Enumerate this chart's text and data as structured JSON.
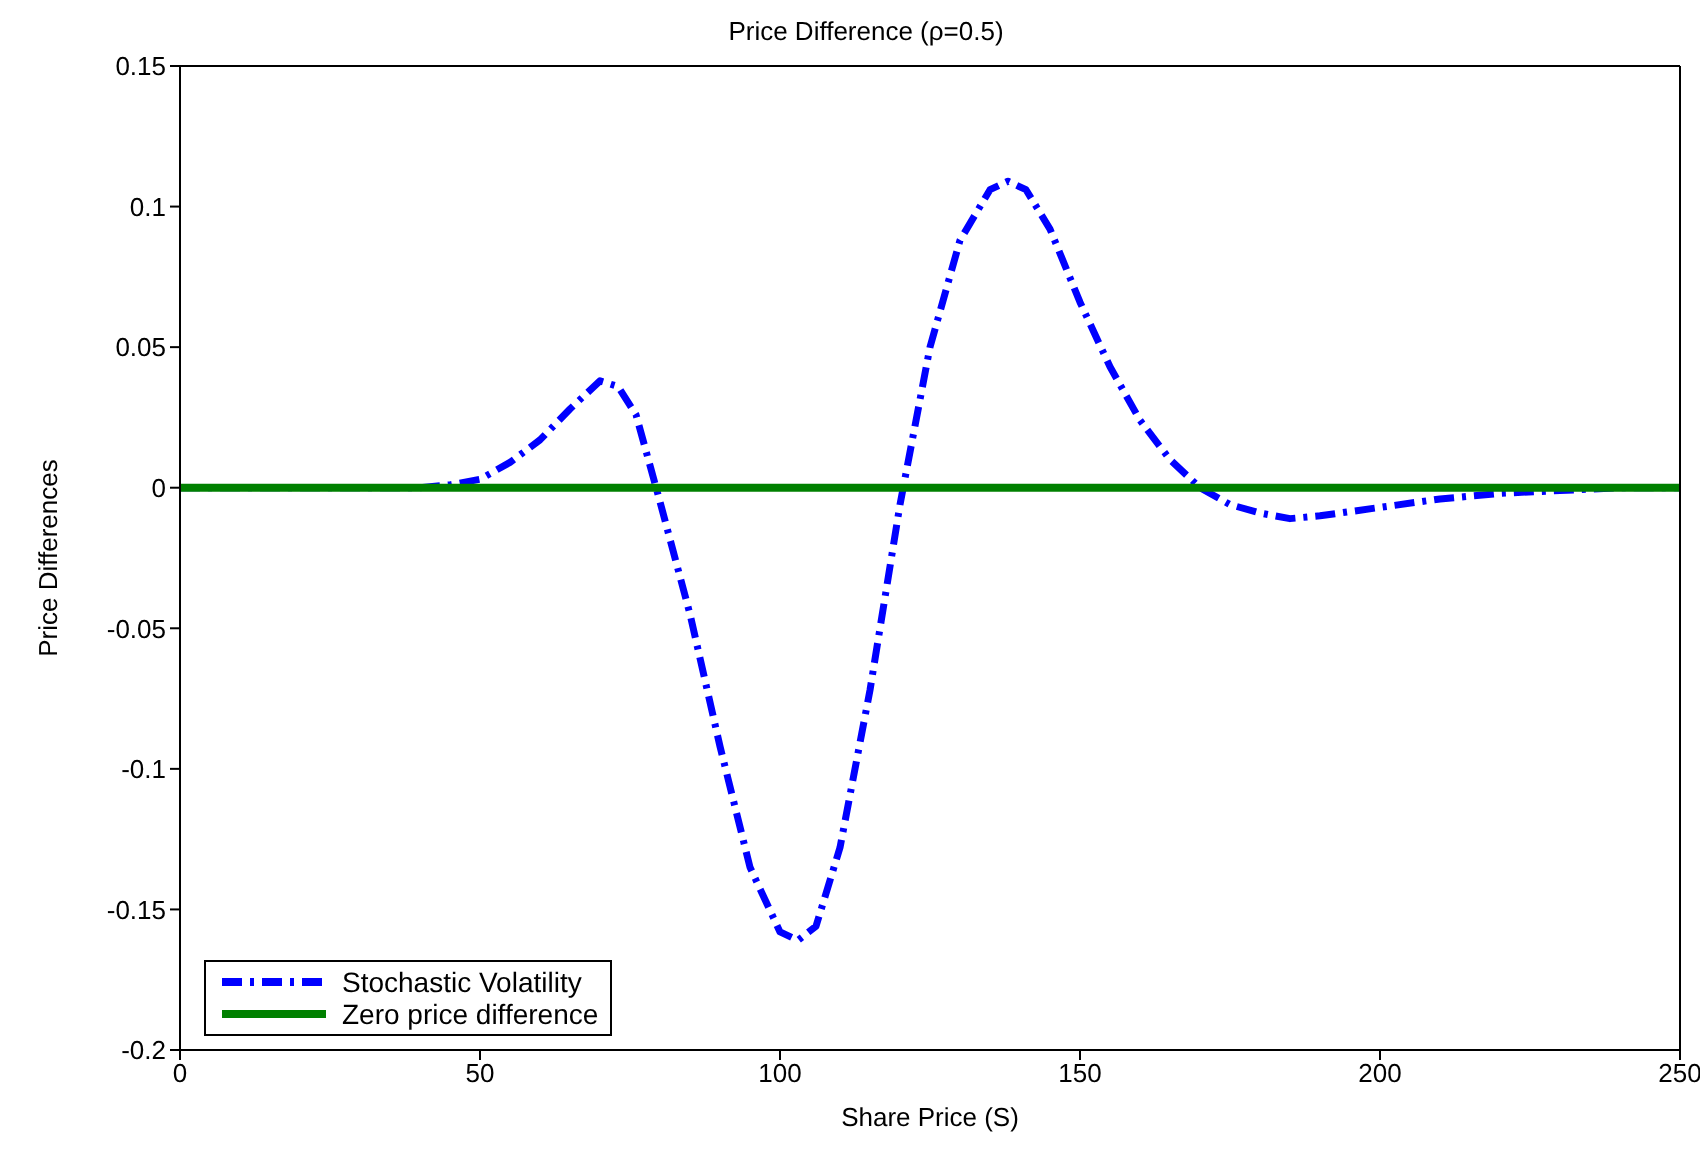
{
  "chart_data": {
    "type": "line",
    "title": "Price Difference (ρ=0.5)",
    "xlabel": "Share Price (S)",
    "ylabel": "Price Differences",
    "xlim": [
      0,
      250
    ],
    "xticks": [
      0,
      50,
      100,
      150,
      200,
      250
    ],
    "ylim": [
      -0.2,
      0.15
    ],
    "yticks": [
      -0.2,
      -0.15,
      -0.1,
      -0.05,
      0,
      0.05,
      0.1,
      0.15
    ],
    "grid": false,
    "legend": "bottom left",
    "marker": "none",
    "series": [
      {
        "name": "Stochastic Volatility",
        "color": "#0000ff",
        "line_style": "dashed",
        "x": [
          0,
          20,
          40,
          45,
          50,
          55,
          60,
          65,
          70,
          73,
          76,
          80,
          85,
          90,
          95,
          100,
          103,
          106,
          110,
          115,
          120,
          125,
          130,
          135,
          138,
          141,
          145,
          150,
          155,
          160,
          165,
          170,
          175,
          180,
          185,
          190,
          200,
          210,
          220,
          230,
          240,
          250
        ],
        "values": [
          0,
          0,
          0,
          0.001,
          0.003,
          0.009,
          0.017,
          0.028,
          0.038,
          0.036,
          0.026,
          -0.005,
          -0.045,
          -0.092,
          -0.135,
          -0.158,
          -0.161,
          -0.156,
          -0.128,
          -0.072,
          -0.006,
          0.05,
          0.088,
          0.106,
          0.109,
          0.106,
          0.092,
          0.066,
          0.043,
          0.024,
          0.01,
          0.0,
          -0.006,
          -0.009,
          -0.011,
          -0.01,
          -0.007,
          -0.004,
          -0.002,
          -0.001,
          0,
          0
        ]
      },
      {
        "name": "Zero price difference",
        "color": "#008000",
        "line_style": "solid",
        "x": [
          0,
          250
        ],
        "values": [
          0,
          0
        ]
      }
    ]
  }
}
